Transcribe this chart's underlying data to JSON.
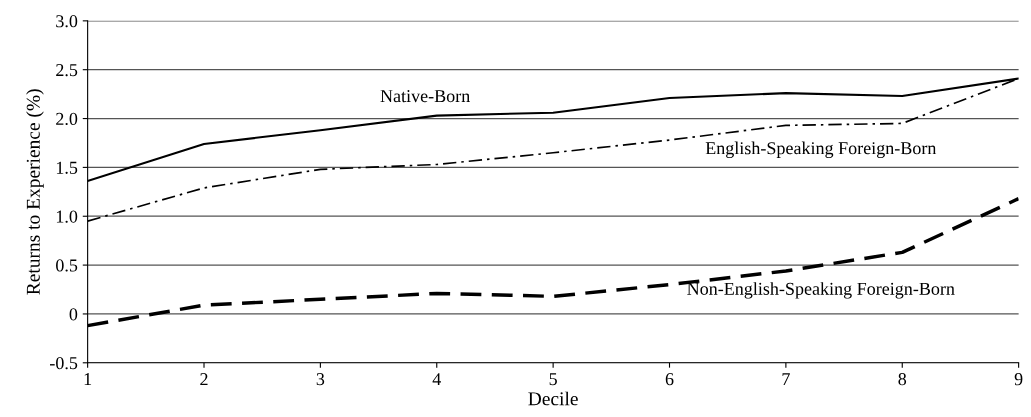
{
  "chart_data": {
    "type": "line",
    "xlabel": "Decile",
    "ylabel": "Returns to Experience (%)",
    "x": [
      1,
      2,
      3,
      4,
      5,
      6,
      7,
      8,
      9
    ],
    "series": [
      {
        "name": "Native-Born",
        "color": "#000000",
        "line_style": "solid",
        "values": [
          1.36,
          1.74,
          1.88,
          2.03,
          2.06,
          2.21,
          2.26,
          2.23,
          2.41
        ]
      },
      {
        "name": "English-Speaking Foreign-Born",
        "color": "#000000",
        "line_style": "dashdot",
        "values": [
          0.95,
          1.29,
          1.48,
          1.53,
          1.65,
          1.78,
          1.93,
          1.95,
          2.41
        ]
      },
      {
        "name": "Non-English-Speaking Foreign-Born",
        "color": "#000000",
        "line_style": "dashed",
        "values": [
          -0.12,
          0.09,
          0.15,
          0.21,
          0.18,
          0.3,
          0.44,
          0.63,
          1.18
        ]
      }
    ],
    "xlim": [
      1,
      9
    ],
    "xticks": [
      1,
      2,
      3,
      4,
      5,
      6,
      7,
      8,
      9
    ],
    "ylim": [
      -0.5,
      3.0
    ],
    "yticks": [
      -0.5,
      0,
      0.5,
      {
        "value": 1,
        "label": "1.0"
      },
      1.5,
      {
        "value": 2,
        "label": "2.0"
      },
      2.5,
      {
        "value": 3,
        "label": "3.0"
      }
    ],
    "grid": "y",
    "legend": false,
    "marker": "none"
  }
}
